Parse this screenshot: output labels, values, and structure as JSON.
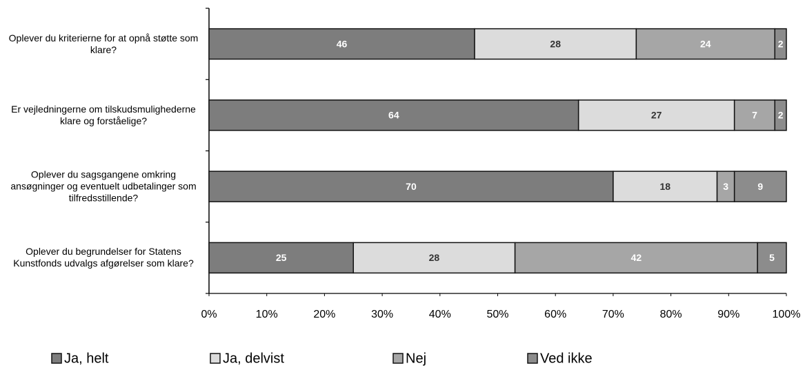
{
  "chart_data": {
    "type": "stacked-barh",
    "categories": [
      "Oplever du kriterierne for at opnå støtte som klare?",
      "Er vejledningerne om tilskudsmulighederne klare og forståelige?",
      "Oplever du sagsgangene omkring ansøgninger og eventuelt udbetalinger som tilfredsstillende?",
      "Oplever du begrundelser for Statens Kunstfonds udvalgs afgørelser som klare?"
    ],
    "series": [
      {
        "name": "Ja, helt",
        "color": "#7d7d7d",
        "values": [
          46,
          64,
          70,
          25
        ]
      },
      {
        "name": "Ja, delvist",
        "color": "#dcdcdc",
        "values": [
          28,
          27,
          18,
          28
        ]
      },
      {
        "name": "Nej",
        "color": "#a6a6a6",
        "values": [
          24,
          7,
          3,
          42
        ]
      },
      {
        "name": "Ved ikke",
        "color": "#8c8c8c",
        "values": [
          2,
          2,
          9,
          5
        ]
      }
    ],
    "xlim": [
      0,
      100
    ],
    "xticks": [
      {
        "value": 0,
        "label": "0%"
      },
      {
        "value": 10,
        "label": "10%"
      },
      {
        "value": 20,
        "label": "20%"
      },
      {
        "value": 30,
        "label": "30%"
      },
      {
        "value": 40,
        "label": "40%"
      },
      {
        "value": 50,
        "label": "50%"
      },
      {
        "value": 60,
        "label": "60%"
      },
      {
        "value": 70,
        "label": "70%"
      },
      {
        "value": 80,
        "label": "80%"
      },
      {
        "value": 90,
        "label": "90%"
      },
      {
        "value": 100,
        "label": "100%"
      }
    ]
  }
}
